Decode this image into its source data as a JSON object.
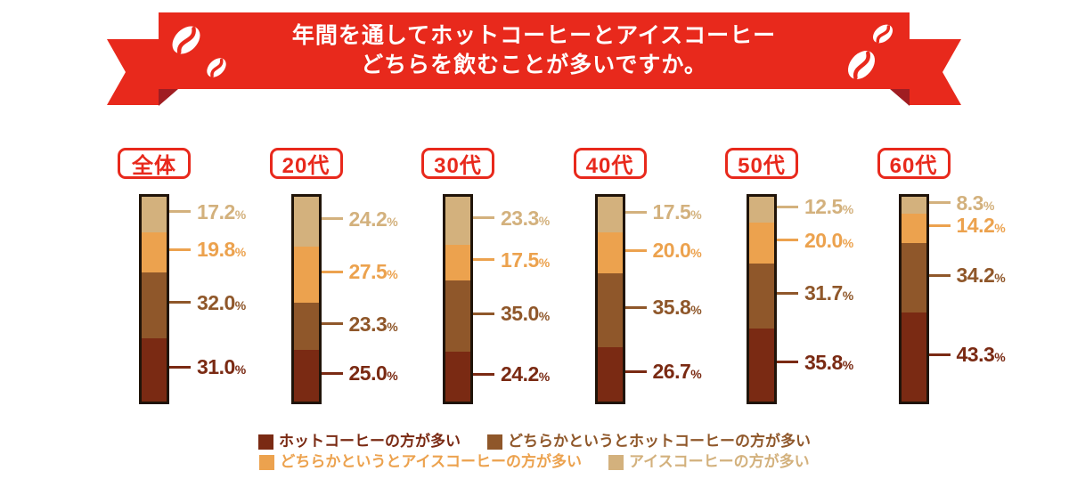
{
  "banner": {
    "title_line1": "年間を通してホットコーヒーとアイスコーヒー",
    "title_line2": "どちらを飲むことが多いですか。",
    "ribbon_color": "#e8291c",
    "ribbon_fold_color": "#a01d22",
    "bean_color": "#ffffff"
  },
  "chart_data": {
    "type": "bar",
    "subtype": "stacked-vertical-percentage",
    "unit": "%",
    "title": "年間を通してホットコーヒーとアイスコーヒーどちらを飲むことが多いですか。",
    "categories": [
      "全体",
      "20代",
      "30代",
      "40代",
      "50代",
      "60代"
    ],
    "stack_order_top_to_bottom": [
      "アイスコーヒーの方が多い",
      "どちらかというとアイスコーヒーの方が多い",
      "どちらかというとホットコーヒーの方が多い",
      "ホットコーヒーの方が多い"
    ],
    "series": [
      {
        "name": "ホットコーヒーの方が多い",
        "color": "#7a2a13",
        "values": [
          31.0,
          25.0,
          24.2,
          26.7,
          35.8,
          43.3
        ]
      },
      {
        "name": "どちらかというとホットコーヒーの方が多い",
        "color": "#8f572a",
        "values": [
          32.0,
          23.3,
          35.0,
          35.8,
          31.7,
          34.2
        ]
      },
      {
        "name": "どちらかというとアイスコーヒーの方が多い",
        "color": "#eca24e",
        "values": [
          19.8,
          27.5,
          17.5,
          20.0,
          20.0,
          14.2
        ]
      },
      {
        "name": "アイスコーヒーの方が多い",
        "color": "#d3b17d",
        "values": [
          17.2,
          24.2,
          23.3,
          17.5,
          12.5,
          8.3
        ]
      }
    ],
    "ylim": [
      0,
      100
    ],
    "grid": false,
    "legend_position": "bottom",
    "value_labels": true
  },
  "legend": {
    "rows": [
      [
        0,
        1
      ],
      [
        2,
        3
      ]
    ]
  },
  "styles": {
    "category_label_color": "#e8291c",
    "bar_border_color": "#201409",
    "percent_suffix": "%"
  }
}
